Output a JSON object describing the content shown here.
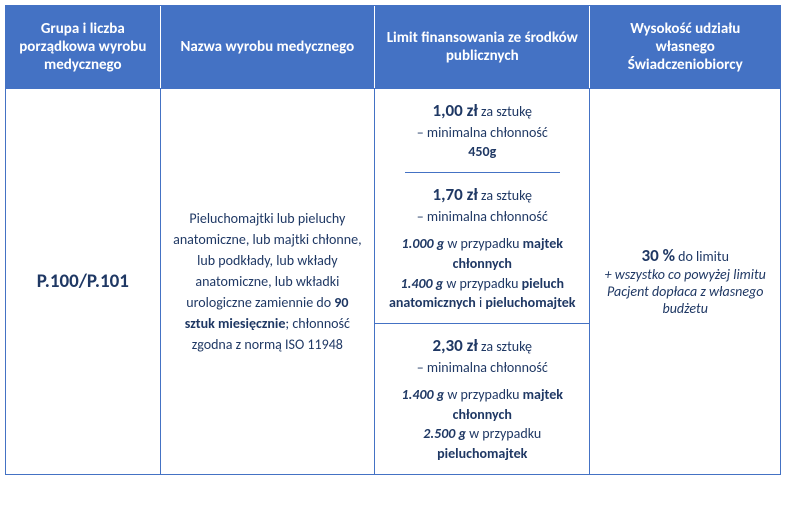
{
  "theme": {
    "headerBg": "#4472c4",
    "headerText": "#ffffff",
    "bodyText": "#1f3864",
    "borderColor": "#4472c4"
  },
  "headers": {
    "col1": "Grupa i liczba porządkowa wyrobu medycznego",
    "col2": "Nazwa wyrobu medycznego",
    "col3": "Limit finansowania ze środków publicznych",
    "col4": "Wysokość udziału własnego Świadczeniobiorcy"
  },
  "row": {
    "code": "P.100/P.101",
    "productDesc": {
      "pre": "Pieluchomajtki lub pieluchy anatomiczne, lub majtki chłonne, lub podkłady, lub wkłady anatomiczne, lub wkładki urologiczne zamiennie do ",
      "bold1": "90 sztuk miesięcznie",
      "mid": "; chłonność zgodna z normą ISO 11948"
    },
    "limits": [
      {
        "price": "1,00 zł",
        "perUnit": " za sztukę",
        "line2": "– minimalna chłonność",
        "line3bold": "450g"
      },
      {
        "price": "1,70 zł",
        "perUnit": " za sztukę",
        "line2": "– minimalna chłonność",
        "spec1bi": "1.000 g",
        "spec1txt": " w przypadku ",
        "spec1bold": "majtek chłonnych",
        "spec2bi": "1.400 g",
        "spec2txt": " w przypadku ",
        "spec2bold1": "pieluch anatomicznych",
        "spec2and": " i ",
        "spec2bold2": "pieluchomajtek"
      },
      {
        "price": "2,30 zł",
        "perUnit": " za sztukę",
        "line2": "– minimalna chłonność",
        "spec1bi": "1.400 g",
        "spec1txt": " w przypadku ",
        "spec1bold": "majtek chłonnych",
        "spec2bi": "2.500 g",
        "spec2txt": " w przypadku ",
        "spec2bold": "pieluchomajtek"
      }
    ],
    "share": {
      "percent": "30 %",
      "rest": " do limitu",
      "note": "+ wszystko co powyżej limitu Pacjent dopłaca z własnego budżetu"
    }
  }
}
